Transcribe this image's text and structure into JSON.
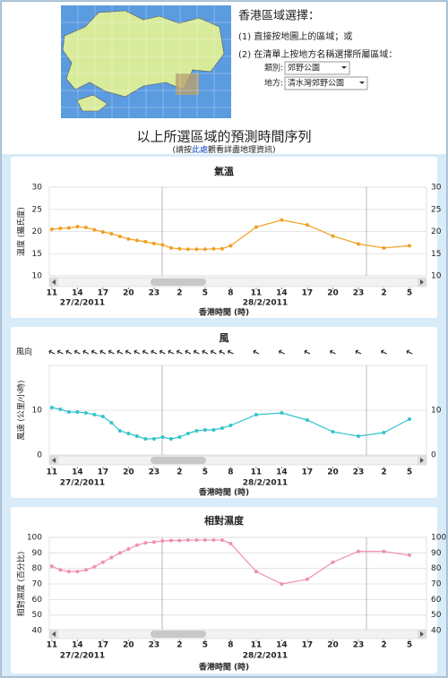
{
  "header": {
    "title": "香港區域選擇：",
    "step1": "(1) 直接按地圖上的區域；或",
    "step2": "(2) 在清單上按地方名稱選擇所屬區域：",
    "category_label": "類別:",
    "category_value": "郊野公園",
    "place_label": "地方:",
    "place_value": "清水灣郊野公園"
  },
  "heading": {
    "title": "以上所選區域的預測時間序列",
    "note_before": "(請按",
    "note_link": "此處",
    "note_after": "觀看詳盡地理資訊)"
  },
  "chart_data": [
    {
      "type": "line",
      "title": "氣溫",
      "ylabel": "溫度 (攝氏度)",
      "xlabel": "香港時間 (時)",
      "dates": [
        "27/2/2011",
        "28/2/2011"
      ],
      "color": "#f0a020",
      "grid": true,
      "x": [
        11,
        12,
        13,
        14,
        15,
        16,
        17,
        18,
        19,
        20,
        21,
        22,
        23,
        24,
        25,
        26,
        27,
        28,
        29,
        30,
        31,
        32,
        35,
        38,
        41,
        44,
        47,
        50,
        53
      ],
      "values": [
        20.5,
        20.7,
        20.8,
        21.1,
        20.9,
        20.4,
        19.9,
        19.5,
        18.9,
        18.3,
        18.0,
        17.7,
        17.3,
        17.0,
        16.3,
        16.1,
        16.0,
        16.0,
        16.0,
        16.1,
        16.1,
        16.8,
        21.0,
        22.6,
        21.5,
        19.0,
        17.2,
        16.3,
        16.8
      ],
      "xlim": [
        10.7,
        55
      ],
      "xticks": [
        11,
        14,
        17,
        20,
        23,
        {
          "value": 26,
          "label": "2"
        },
        {
          "value": 29,
          "label": "5"
        },
        {
          "value": 32,
          "label": "8"
        },
        {
          "value": 35,
          "label": "11"
        },
        {
          "value": 38,
          "label": "14"
        },
        {
          "value": 41,
          "label": "17"
        },
        {
          "value": 44,
          "label": "20"
        },
        {
          "value": 47,
          "label": "23"
        },
        {
          "value": 50,
          "label": "2"
        },
        {
          "value": 53,
          "label": "5"
        }
      ],
      "ylim": [
        10,
        30
      ],
      "yticks": [
        10,
        15,
        20,
        25,
        30
      ]
    },
    {
      "type": "line",
      "title": "風",
      "direction_label": "風向",
      "ylabel": "風速 (公里/小時)",
      "xlabel": "香港時間 (時)",
      "dates": [
        "27/2/2011",
        "28/2/2011"
      ],
      "color": "#33c4cc",
      "grid": true,
      "x": [
        11,
        12,
        13,
        14,
        15,
        16,
        17,
        18,
        19,
        20,
        21,
        22,
        23,
        24,
        25,
        26,
        27,
        28,
        29,
        30,
        31,
        32,
        35,
        38,
        41,
        44,
        47,
        50,
        53
      ],
      "values": [
        10.6,
        10.2,
        9.6,
        9.6,
        9.4,
        9.0,
        8.6,
        7.2,
        5.4,
        4.8,
        4.2,
        3.6,
        3.6,
        4.0,
        3.6,
        4.0,
        4.8,
        5.4,
        5.6,
        5.6,
        6.0,
        6.6,
        9.0,
        9.4,
        7.8,
        5.2,
        4.2,
        5.0,
        8.0
      ],
      "xlim": [
        10.7,
        55
      ],
      "xticks": [
        11,
        14,
        17,
        20,
        23,
        {
          "value": 26,
          "label": "2"
        },
        {
          "value": 29,
          "label": "5"
        },
        {
          "value": 32,
          "label": "8"
        },
        {
          "value": 35,
          "label": "11"
        },
        {
          "value": 38,
          "label": "14"
        },
        {
          "value": 41,
          "label": "17"
        },
        {
          "value": 44,
          "label": "20"
        },
        {
          "value": 47,
          "label": "23"
        },
        {
          "value": 50,
          "label": "2"
        },
        {
          "value": 53,
          "label": "5"
        }
      ],
      "ylim": [
        0,
        20
      ],
      "yticks": [
        0,
        10
      ]
    },
    {
      "type": "line",
      "title": "相對濕度",
      "ylabel": "相對濕度 (百分比)",
      "xlabel": "香港時間 (時)",
      "dates": [
        "27/2/2011",
        "28/2/2011"
      ],
      "color": "#f090b0",
      "grid": true,
      "x": [
        11,
        12,
        13,
        14,
        15,
        16,
        17,
        18,
        19,
        20,
        21,
        22,
        23,
        24,
        25,
        26,
        27,
        28,
        29,
        30,
        31,
        32,
        35,
        38,
        41,
        44,
        47,
        50,
        53
      ],
      "values": [
        81.5,
        79,
        78,
        78,
        79,
        81,
        84,
        87,
        90,
        92.5,
        95,
        96.5,
        97,
        97.7,
        98,
        98,
        98.3,
        98.3,
        98.3,
        98.3,
        98.3,
        96,
        78,
        70,
        73,
        84,
        91,
        91,
        88.5
      ],
      "xlim": [
        10.7,
        55
      ],
      "xticks": [
        11,
        14,
        17,
        20,
        23,
        {
          "value": 26,
          "label": "2"
        },
        {
          "value": 29,
          "label": "5"
        },
        {
          "value": 32,
          "label": "8"
        },
        {
          "value": 35,
          "label": "11"
        },
        {
          "value": 38,
          "label": "14"
        },
        {
          "value": 41,
          "label": "17"
        },
        {
          "value": 44,
          "label": "20"
        },
        {
          "value": 47,
          "label": "23"
        },
        {
          "value": 50,
          "label": "2"
        },
        {
          "value": 53,
          "label": "5"
        }
      ],
      "ylim": [
        40,
        100
      ],
      "yticks": [
        40,
        50,
        60,
        70,
        80,
        90,
        100
      ]
    }
  ]
}
